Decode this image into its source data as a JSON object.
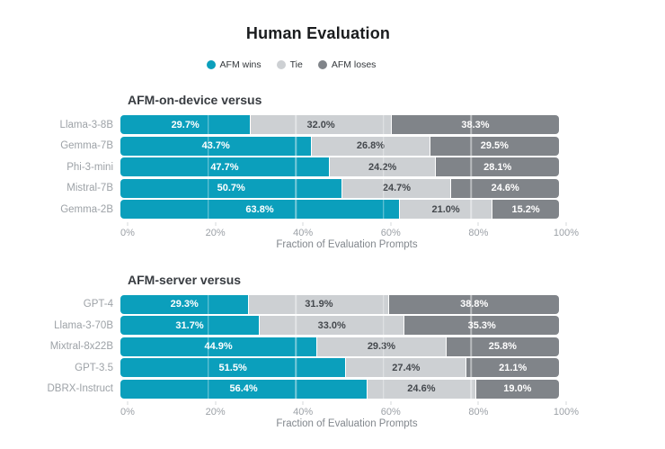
{
  "title": "Human Evaluation",
  "legend": [
    {
      "name": "afm-wins",
      "label": "AFM wins",
      "color": "#0B9FBC",
      "dot_icon": "circle"
    },
    {
      "name": "tie",
      "label": "Tie",
      "color": "#CDD0D3",
      "dot_icon": "circle"
    },
    {
      "name": "afm-loses",
      "label": "AFM loses",
      "color": "#808489",
      "dot_icon": "circle"
    }
  ],
  "colors": {
    "afm_wins": "#0B9FBC",
    "tie": "#CDD0D3",
    "afm_loses": "#808489",
    "label_on_dark": "#FFFFFF",
    "label_on_light": "#44484D",
    "category_label": "#9DA2A7",
    "tick_label": "#9CA1A7",
    "background": "#FFFFFF"
  },
  "chart_data": [
    {
      "type": "bar",
      "stacked": true,
      "orientation": "horizontal",
      "title": "AFM-on-device versus",
      "categories": [
        "Llama-3-8B",
        "Gemma-7B",
        "Phi-3-mini",
        "Mistral-7B",
        "Gemma-2B"
      ],
      "series": [
        {
          "name": "AFM wins",
          "color": "#0B9FBC",
          "label_color": "#FFFFFF",
          "values": [
            29.7,
            43.7,
            47.7,
            50.7,
            63.8
          ]
        },
        {
          "name": "Tie",
          "color": "#CDD0D3",
          "label_color": "#44484D",
          "values": [
            32.0,
            26.8,
            24.2,
            24.7,
            21.0
          ]
        },
        {
          "name": "AFM loses",
          "color": "#808489",
          "label_color": "#FFFFFF",
          "values": [
            38.3,
            29.5,
            28.1,
            24.6,
            15.2
          ]
        }
      ],
      "xlabel": "Fraction of Evaluation Prompts",
      "xlim": [
        0,
        100
      ],
      "tick_labels": [
        "0%",
        "20%",
        "40%",
        "60%",
        "80%",
        "100%"
      ],
      "tick_values": [
        0,
        20,
        40,
        60,
        80,
        100
      ],
      "gridline_values": [
        20,
        40,
        60,
        80
      ],
      "value_suffix": "%"
    },
    {
      "type": "bar",
      "stacked": true,
      "orientation": "horizontal",
      "title": "AFM-server versus",
      "categories": [
        "GPT-4",
        "Llama-3-70B",
        "Mixtral-8x22B",
        "GPT-3.5",
        "DBRX-Instruct"
      ],
      "series": [
        {
          "name": "AFM wins",
          "color": "#0B9FBC",
          "label_color": "#FFFFFF",
          "values": [
            29.3,
            31.7,
            44.9,
            51.5,
            56.4
          ]
        },
        {
          "name": "Tie",
          "color": "#CDD0D3",
          "label_color": "#44484D",
          "values": [
            31.9,
            33.0,
            29.3,
            27.4,
            24.6
          ]
        },
        {
          "name": "AFM loses",
          "color": "#808489",
          "label_color": "#FFFFFF",
          "values": [
            38.8,
            35.3,
            25.8,
            21.1,
            19.0
          ]
        }
      ],
      "xlabel": "Fraction of Evaluation Prompts",
      "xlim": [
        0,
        100
      ],
      "tick_labels": [
        "0%",
        "20%",
        "40%",
        "60%",
        "80%",
        "100%"
      ],
      "tick_values": [
        0,
        20,
        40,
        60,
        80,
        100
      ],
      "gridline_values": [
        20,
        40,
        60,
        80
      ],
      "value_suffix": "%"
    }
  ]
}
